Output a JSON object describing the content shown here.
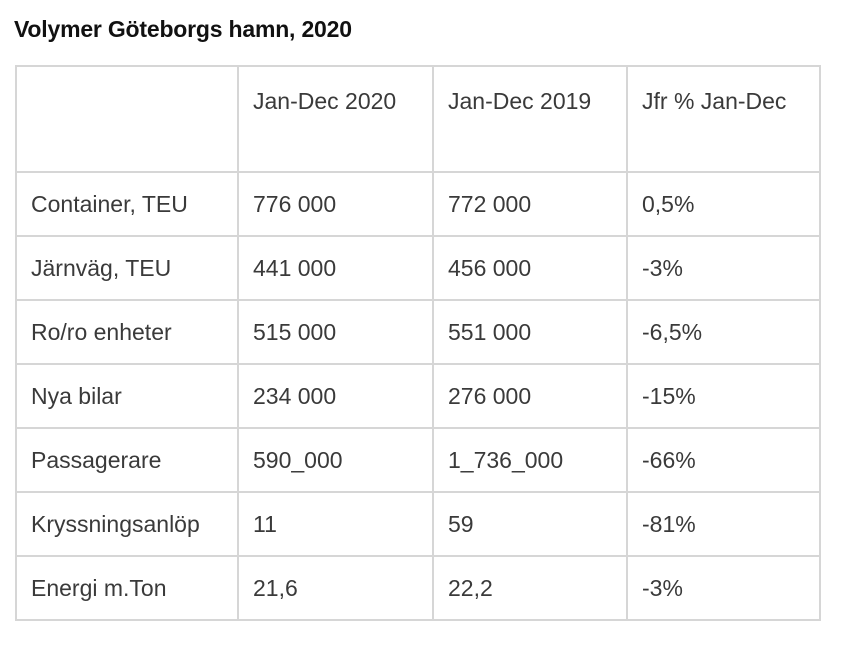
{
  "title": "Volymer Göteborgs hamn, 2020",
  "table": {
    "headers": [
      "",
      "Jan-Dec 2020",
      "Jan-Dec 2019",
      "Jfr % Jan-Dec"
    ],
    "rows": [
      {
        "label": "Container, TEU",
        "v2020": "776 000",
        "v2019": "772 000",
        "change": "0,5%"
      },
      {
        "label": "Järnväg, TEU",
        "v2020": "441 000",
        "v2019": "456 000",
        "change": "-3%"
      },
      {
        "label": "Ro/ro enheter",
        "v2020": "515 000",
        "v2019": "551 000",
        "change": "-6,5%"
      },
      {
        "label": "Nya bilar",
        "v2020": "234 000",
        "v2019": "276 000",
        "change": "-15%"
      },
      {
        "label": "Passagerare",
        "v2020": "590_000",
        "v2019": "1_736_000",
        "change": "-66%"
      },
      {
        "label": "Kryssningsanlöp",
        "v2020": "11",
        "v2019": "59",
        "change": "-81%"
      },
      {
        "label": "Energi m.Ton",
        "v2020": "21,6",
        "v2019": "22,2",
        "change": "-3%"
      }
    ]
  }
}
